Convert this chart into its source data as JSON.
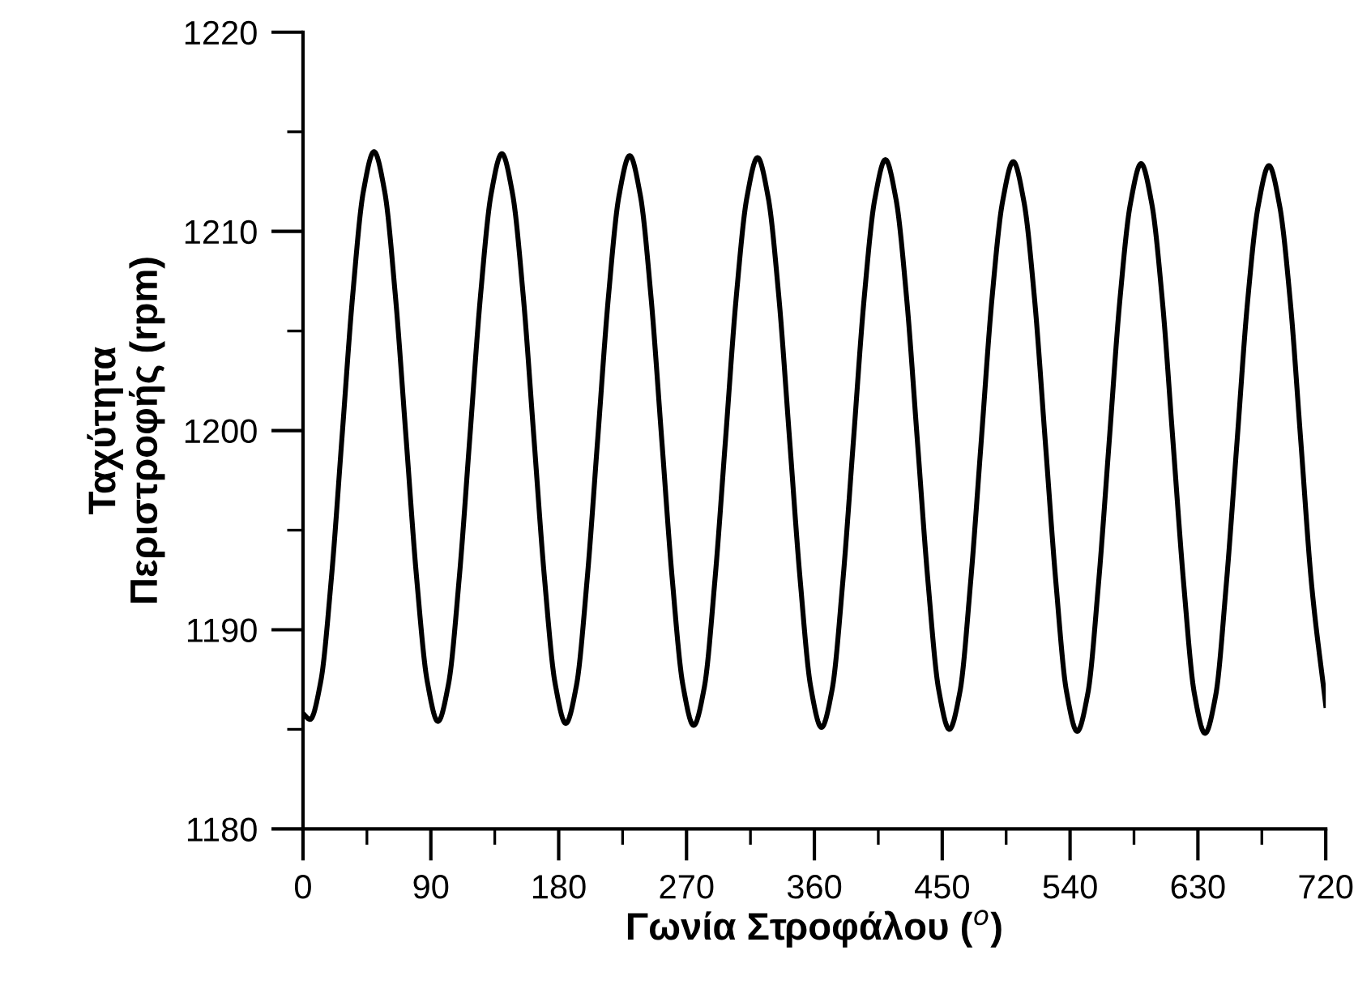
{
  "chart_data": {
    "type": "line",
    "xlabel": "Γωνία Στροφάλου ($^{o}$)",
    "ylabel": "Ταχύτητα\nΠεριστροφής (rpm)",
    "x": [
      0,
      5,
      12.5,
      20,
      27.5,
      35,
      42.5,
      50,
      57.5,
      65,
      72.5,
      80,
      87.5,
      95,
      102.5,
      110,
      117.5,
      125,
      132.5,
      140,
      147.5,
      155,
      162.5,
      170,
      177.5,
      185,
      192.5,
      200,
      207.5,
      215,
      222.5,
      230,
      237.5,
      245,
      252.5,
      260,
      267.5,
      275,
      282.5,
      290,
      297.5,
      305,
      312.5,
      320,
      327.5,
      335,
      342.5,
      350,
      357.5,
      365,
      372.5,
      380,
      387.5,
      395,
      402.5,
      410,
      417.5,
      425,
      432.5,
      440,
      447.5,
      455,
      462.5,
      470,
      477.5,
      485,
      492.5,
      500,
      507.5,
      515,
      522.5,
      530,
      537.5,
      545,
      552.5,
      560,
      567.5,
      575,
      582.5,
      590,
      597.5,
      605,
      612.5,
      620,
      627.5,
      635,
      642.5,
      650,
      657.5,
      665,
      672.5,
      680,
      687.5,
      695,
      702.5,
      710,
      720
    ],
    "series": [
      {
        "color": "#000000",
        "values": [
          1185.8,
          1185.5,
          1187.4,
          1192.6,
          1199.7,
          1206.8,
          1212.0,
          1214.0,
          1212.0,
          1206.8,
          1199.7,
          1192.6,
          1187.4,
          1185.4,
          1187.3,
          1192.6,
          1199.7,
          1206.8,
          1211.9,
          1213.9,
          1211.9,
          1206.8,
          1199.7,
          1192.6,
          1187.3,
          1185.3,
          1187.2,
          1192.5,
          1199.6,
          1206.7,
          1211.8,
          1213.8,
          1211.8,
          1206.7,
          1199.6,
          1192.5,
          1187.2,
          1185.2,
          1187.1,
          1192.5,
          1199.6,
          1206.7,
          1211.7,
          1213.7,
          1211.7,
          1206.7,
          1199.6,
          1192.5,
          1187.1,
          1185.1,
          1187.0,
          1192.4,
          1199.5,
          1206.6,
          1211.6,
          1213.6,
          1211.6,
          1206.6,
          1199.5,
          1192.4,
          1187.0,
          1185.0,
          1186.9,
          1192.4,
          1199.5,
          1206.6,
          1211.5,
          1213.5,
          1211.5,
          1206.6,
          1199.5,
          1192.4,
          1186.9,
          1184.9,
          1186.8,
          1192.3,
          1199.4,
          1206.5,
          1211.4,
          1213.4,
          1211.4,
          1206.5,
          1199.4,
          1192.3,
          1186.8,
          1184.8,
          1186.7,
          1192.3,
          1199.4,
          1206.5,
          1211.3,
          1213.3,
          1211.3,
          1206.5,
          1199.4,
          1192.3,
          1186.2
        ]
      }
    ],
    "xlim": [
      0,
      720
    ],
    "ylim": [
      1180,
      1220
    ],
    "xticks": [
      0,
      {
        "value": 45,
        "label": null
      },
      90,
      {
        "value": 135,
        "label": null
      },
      180,
      {
        "value": 225,
        "label": null
      },
      270,
      {
        "value": 315,
        "label": null
      },
      360,
      {
        "value": 405,
        "label": null
      },
      450,
      {
        "value": 495,
        "label": null
      },
      540,
      {
        "value": 585,
        "label": null
      },
      630,
      {
        "value": 675,
        "label": null
      },
      720
    ],
    "yticks": [
      1180,
      {
        "value": 1185,
        "label": null
      },
      1190,
      {
        "value": 1195,
        "label": null
      },
      1200,
      {
        "value": 1205,
        "label": null
      },
      1210,
      {
        "value": 1215,
        "label": null
      },
      1220
    ],
    "grid": false,
    "marker": "none",
    "line_style": "solid"
  }
}
